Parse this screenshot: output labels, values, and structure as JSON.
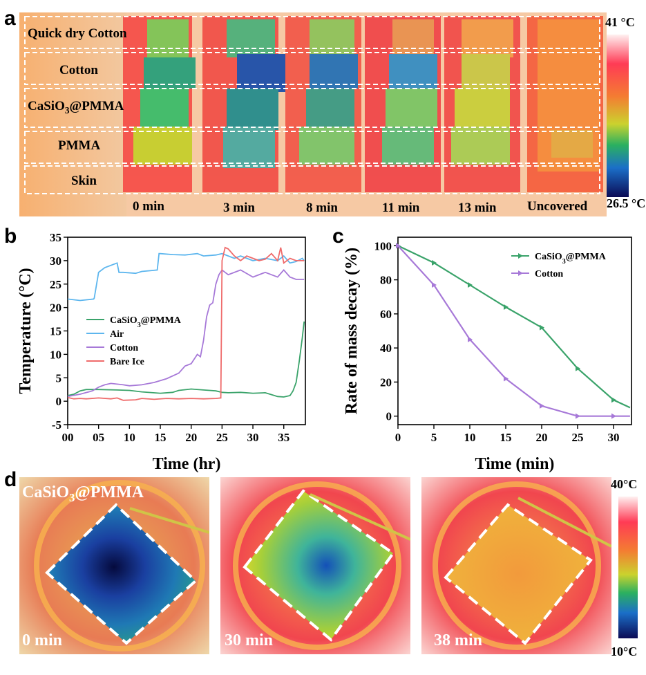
{
  "panel_labels": {
    "a": "a",
    "b": "b",
    "c": "c",
    "d": "d"
  },
  "panel_a": {
    "rows": [
      "Quick dry Cotton",
      "Cotton",
      "CaSiO3@PMMA",
      "PMMA",
      "Skin"
    ],
    "columns": [
      "0 min",
      "3 min",
      "8 min",
      "11 min",
      "13 min",
      "Uncovered"
    ],
    "colorbar_max": "41 °C",
    "colorbar_min": "26.5 °C"
  },
  "panel_d": {
    "overlay_label": "CaSiO3@PMMA",
    "times": [
      "0 min",
      "30 min",
      "38 min"
    ],
    "colorbar_max": "40°C",
    "colorbar_min": "10°C"
  },
  "colors": {
    "casio3": "#3aa36a",
    "air": "#5db6ee",
    "cotton": "#a779d8",
    "bare_ice": "#ef6b6b",
    "green_c": "#3aa36a",
    "purple_c": "#a779d8"
  },
  "chart_data": [
    {
      "type": "line",
      "panel": "b",
      "xlabel": "Time (hr)",
      "ylabel": "Temperature (°C)",
      "xlim": [
        0,
        38.5
      ],
      "ylim": [
        -5,
        35
      ],
      "xticks": [
        "00",
        "05",
        "10",
        "15",
        "20",
        "25",
        "30",
        "35"
      ],
      "yticks": [
        "-5",
        "0",
        "5",
        "10",
        "15",
        "20",
        "25",
        "30",
        "35"
      ],
      "legend": [
        "CaSiO3@PMMA",
        "Air",
        "Cotton",
        "Bare Ice"
      ],
      "series": [
        {
          "name": "CaSiO3@PMMA",
          "x": [
            0,
            1,
            2,
            3,
            5,
            8,
            10,
            12,
            15,
            17,
            18,
            20,
            22,
            23,
            24,
            25,
            26,
            28,
            30,
            32,
            33,
            34,
            35,
            36,
            36.5,
            37,
            37.5,
            38,
            38.3
          ],
          "y": [
            1.2,
            1.5,
            2.2,
            2.5,
            2.5,
            2.4,
            2.3,
            2.0,
            1.7,
            1.9,
            2.3,
            2.6,
            2.4,
            2.3,
            2.2,
            1.9,
            1.8,
            1.9,
            1.7,
            1.8,
            1.4,
            1.0,
            0.9,
            1.2,
            2.2,
            4.0,
            8.5,
            13.5,
            17
          ]
        },
        {
          "name": "Air",
          "x": [
            0,
            2,
            4.2,
            4.3,
            5,
            6,
            8,
            8.3,
            9,
            11,
            12,
            14.5,
            14.8,
            15,
            17,
            19,
            21,
            22,
            24,
            25,
            27,
            28,
            30,
            32,
            34,
            35,
            36,
            37,
            38,
            38.3
          ],
          "y": [
            21.8,
            21.5,
            21.8,
            22,
            27.5,
            28.5,
            29.5,
            27.5,
            27.5,
            27.3,
            27.7,
            28,
            31.5,
            31.5,
            31.3,
            31.2,
            31.5,
            31,
            31.2,
            31.5,
            30.5,
            31,
            30,
            30.5,
            30,
            31,
            29.5,
            29.8,
            30.5,
            30
          ]
        },
        {
          "name": "Cotton",
          "x": [
            0,
            2,
            4,
            5,
            6,
            7,
            9,
            10,
            12,
            14,
            16,
            18,
            19,
            20,
            21,
            21.5,
            22,
            22.5,
            23,
            23.5,
            24,
            24.5,
            25,
            26,
            28,
            30,
            32,
            34,
            35,
            36,
            37,
            38,
            38.3
          ],
          "y": [
            1.0,
            1.5,
            2.2,
            3.0,
            3.5,
            3.8,
            3.5,
            3.3,
            3.5,
            4.0,
            4.8,
            6.0,
            7.5,
            8.0,
            10,
            9.5,
            13,
            18,
            20.5,
            21,
            25,
            27,
            28,
            27,
            28,
            26.5,
            27.5,
            26.5,
            28,
            26.5,
            26,
            26,
            26
          ]
        },
        {
          "name": "Bare Ice",
          "x": [
            0,
            1,
            2,
            3,
            5,
            7,
            8,
            9,
            11,
            12,
            14,
            16,
            18,
            20,
            22,
            24,
            24.8,
            25,
            25.5,
            26,
            27,
            28,
            29,
            30,
            31,
            32,
            33,
            34,
            34.5,
            35,
            36,
            37,
            38,
            38.3
          ],
          "y": [
            0.8,
            0.5,
            0.6,
            0.5,
            0.7,
            0.5,
            0.7,
            0.2,
            0.3,
            0.6,
            0.4,
            0.6,
            0.5,
            0.6,
            0.5,
            0.6,
            0.7,
            30,
            32.8,
            32.5,
            31,
            30,
            31,
            30.5,
            30,
            30.3,
            31.5,
            30,
            32.8,
            29.5,
            30.5,
            30,
            30,
            30
          ]
        }
      ]
    },
    {
      "type": "line",
      "panel": "c",
      "xlabel": "Time (min)",
      "ylabel": "Rate of mass decay (%)",
      "xlim": [
        0,
        32.5
      ],
      "ylim": [
        -5,
        105
      ],
      "xticks": [
        "0",
        "5",
        "10",
        "15",
        "20",
        "25",
        "30"
      ],
      "yticks": [
        "0",
        "20",
        "40",
        "60",
        "80",
        "100"
      ],
      "legend": [
        "CaSiO3@PMMA",
        "Cotton"
      ],
      "series": [
        {
          "name": "CaSiO3@PMMA",
          "x": [
            0,
            5,
            10,
            15,
            20,
            25,
            30,
            32.3
          ],
          "y": [
            100,
            90,
            77,
            64,
            52,
            28,
            9.5,
            5
          ]
        },
        {
          "name": "Cotton",
          "x": [
            0,
            5,
            10,
            15,
            20,
            25,
            30,
            32.3
          ],
          "y": [
            100,
            77,
            45,
            22,
            6,
            0,
            0,
            0
          ]
        }
      ]
    }
  ]
}
